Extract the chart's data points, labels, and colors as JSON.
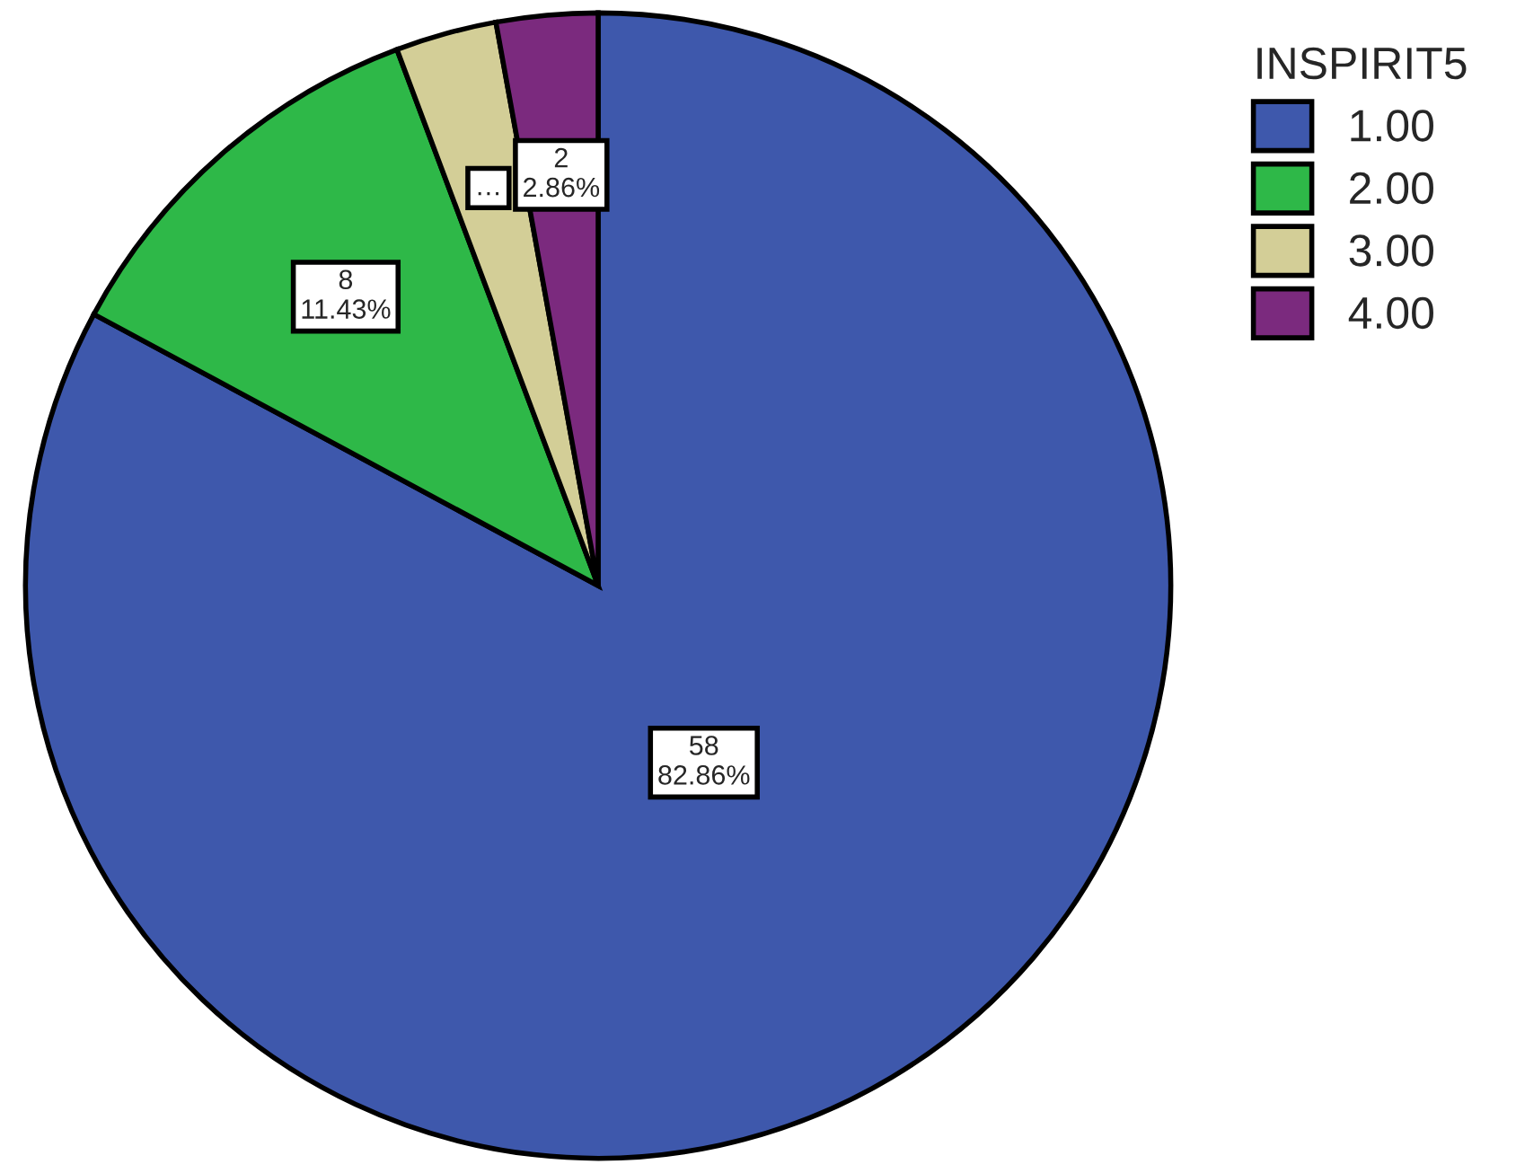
{
  "chart_data": {
    "type": "pie",
    "legend_title": "INSPIRIT5",
    "categories": [
      "1.00",
      "2.00",
      "3.00",
      "4.00"
    ],
    "values": [
      58,
      8,
      2,
      2
    ],
    "colors": [
      "#3e58ac",
      "#2eb848",
      "#d3ce97",
      "#7b2a7e"
    ],
    "value_labels": [
      "58\n82.86%",
      "8\n11.43%",
      "…",
      "2\n2.86%"
    ],
    "legend": "top right"
  }
}
